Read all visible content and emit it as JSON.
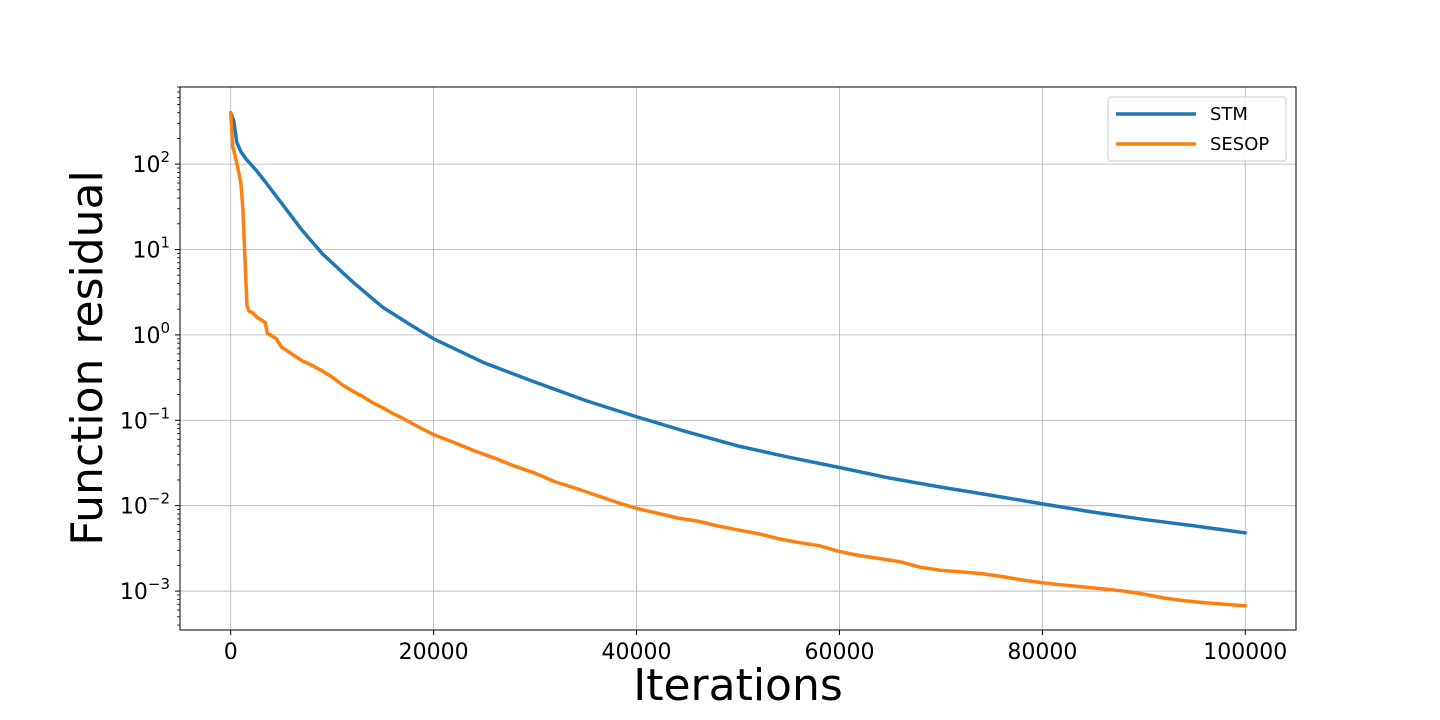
{
  "chart_data": {
    "type": "line",
    "xlabel": "Iterations",
    "ylabel": "Function residual",
    "xscale": "linear",
    "yscale": "log",
    "xlim": [
      -5000,
      105000
    ],
    "ylim": [
      0.00035,
      800
    ],
    "grid": true,
    "legend_position": "top-right",
    "xticks": [
      {
        "value": 0,
        "label": "0"
      },
      {
        "value": 20000,
        "label": "20000"
      },
      {
        "value": 40000,
        "label": "40000"
      },
      {
        "value": 60000,
        "label": "60000"
      },
      {
        "value": 80000,
        "label": "80000"
      },
      {
        "value": 100000,
        "label": "100000"
      }
    ],
    "yticks": [
      {
        "value": 100,
        "base": "10",
        "exp": "2"
      },
      {
        "value": 10,
        "base": "10",
        "exp": "1"
      },
      {
        "value": 1,
        "base": "10",
        "exp": "0"
      },
      {
        "value": 0.1,
        "base": "10",
        "exp": "−1"
      },
      {
        "value": 0.01,
        "base": "10",
        "exp": "−2"
      },
      {
        "value": 0.001,
        "base": "10",
        "exp": "−3"
      }
    ],
    "series": [
      {
        "name": "STM",
        "color": "#1f77b4",
        "x": [
          0,
          300,
          600,
          1000,
          1500,
          2500,
          3500,
          5000,
          7000,
          9000,
          12000,
          15000,
          18000,
          20000,
          25000,
          30000,
          35000,
          40000,
          45000,
          50000,
          55000,
          60000,
          65000,
          70000,
          75000,
          80000,
          85000,
          90000,
          95000,
          100000
        ],
        "y": [
          400,
          320,
          180,
          140,
          115,
          85,
          60,
          35,
          17,
          9,
          4.2,
          2.1,
          1.25,
          0.9,
          0.47,
          0.28,
          0.17,
          0.11,
          0.073,
          0.05,
          0.037,
          0.028,
          0.021,
          0.0165,
          0.0132,
          0.0105,
          0.0084,
          0.0069,
          0.0058,
          0.0048
        ]
      },
      {
        "name": "SESOP",
        "color": "#ff7f0e",
        "x": [
          0,
          200,
          400,
          700,
          1000,
          1200,
          1400,
          1600,
          1800,
          2200,
          2600,
          3000,
          3400,
          3600,
          4000,
          4500,
          5000,
          6000,
          7000,
          8000,
          9000,
          10000,
          11000,
          12000,
          13000,
          14000,
          15000,
          16000,
          17000,
          18000,
          19000,
          20000,
          22000,
          24000,
          26000,
          28000,
          30000,
          32000,
          34000,
          36000,
          38000,
          40000,
          42000,
          44000,
          46000,
          48000,
          50000,
          52000,
          54000,
          56000,
          58000,
          60000,
          62000,
          64000,
          66000,
          68000,
          70000,
          72000,
          74000,
          76000,
          78000,
          80000,
          82000,
          84000,
          86000,
          88000,
          90000,
          92000,
          94000,
          96000,
          98000,
          100000
        ],
        "y": [
          400,
          160,
          130,
          90,
          60,
          30,
          8,
          2.2,
          1.9,
          1.8,
          1.6,
          1.5,
          1.4,
          1.05,
          0.98,
          0.9,
          0.72,
          0.6,
          0.5,
          0.44,
          0.38,
          0.32,
          0.26,
          0.22,
          0.19,
          0.16,
          0.14,
          0.12,
          0.105,
          0.09,
          0.078,
          0.068,
          0.055,
          0.044,
          0.036,
          0.029,
          0.024,
          0.019,
          0.016,
          0.0133,
          0.011,
          0.0093,
          0.0082,
          0.0072,
          0.0066,
          0.0058,
          0.0052,
          0.0047,
          0.0041,
          0.0037,
          0.0034,
          0.0029,
          0.0026,
          0.0024,
          0.0022,
          0.0019,
          0.00175,
          0.00168,
          0.0016,
          0.00148,
          0.00135,
          0.00125,
          0.00118,
          0.00112,
          0.00106,
          0.001,
          0.00092,
          0.00083,
          0.00077,
          0.00073,
          0.0007,
          0.00067
        ]
      }
    ]
  }
}
